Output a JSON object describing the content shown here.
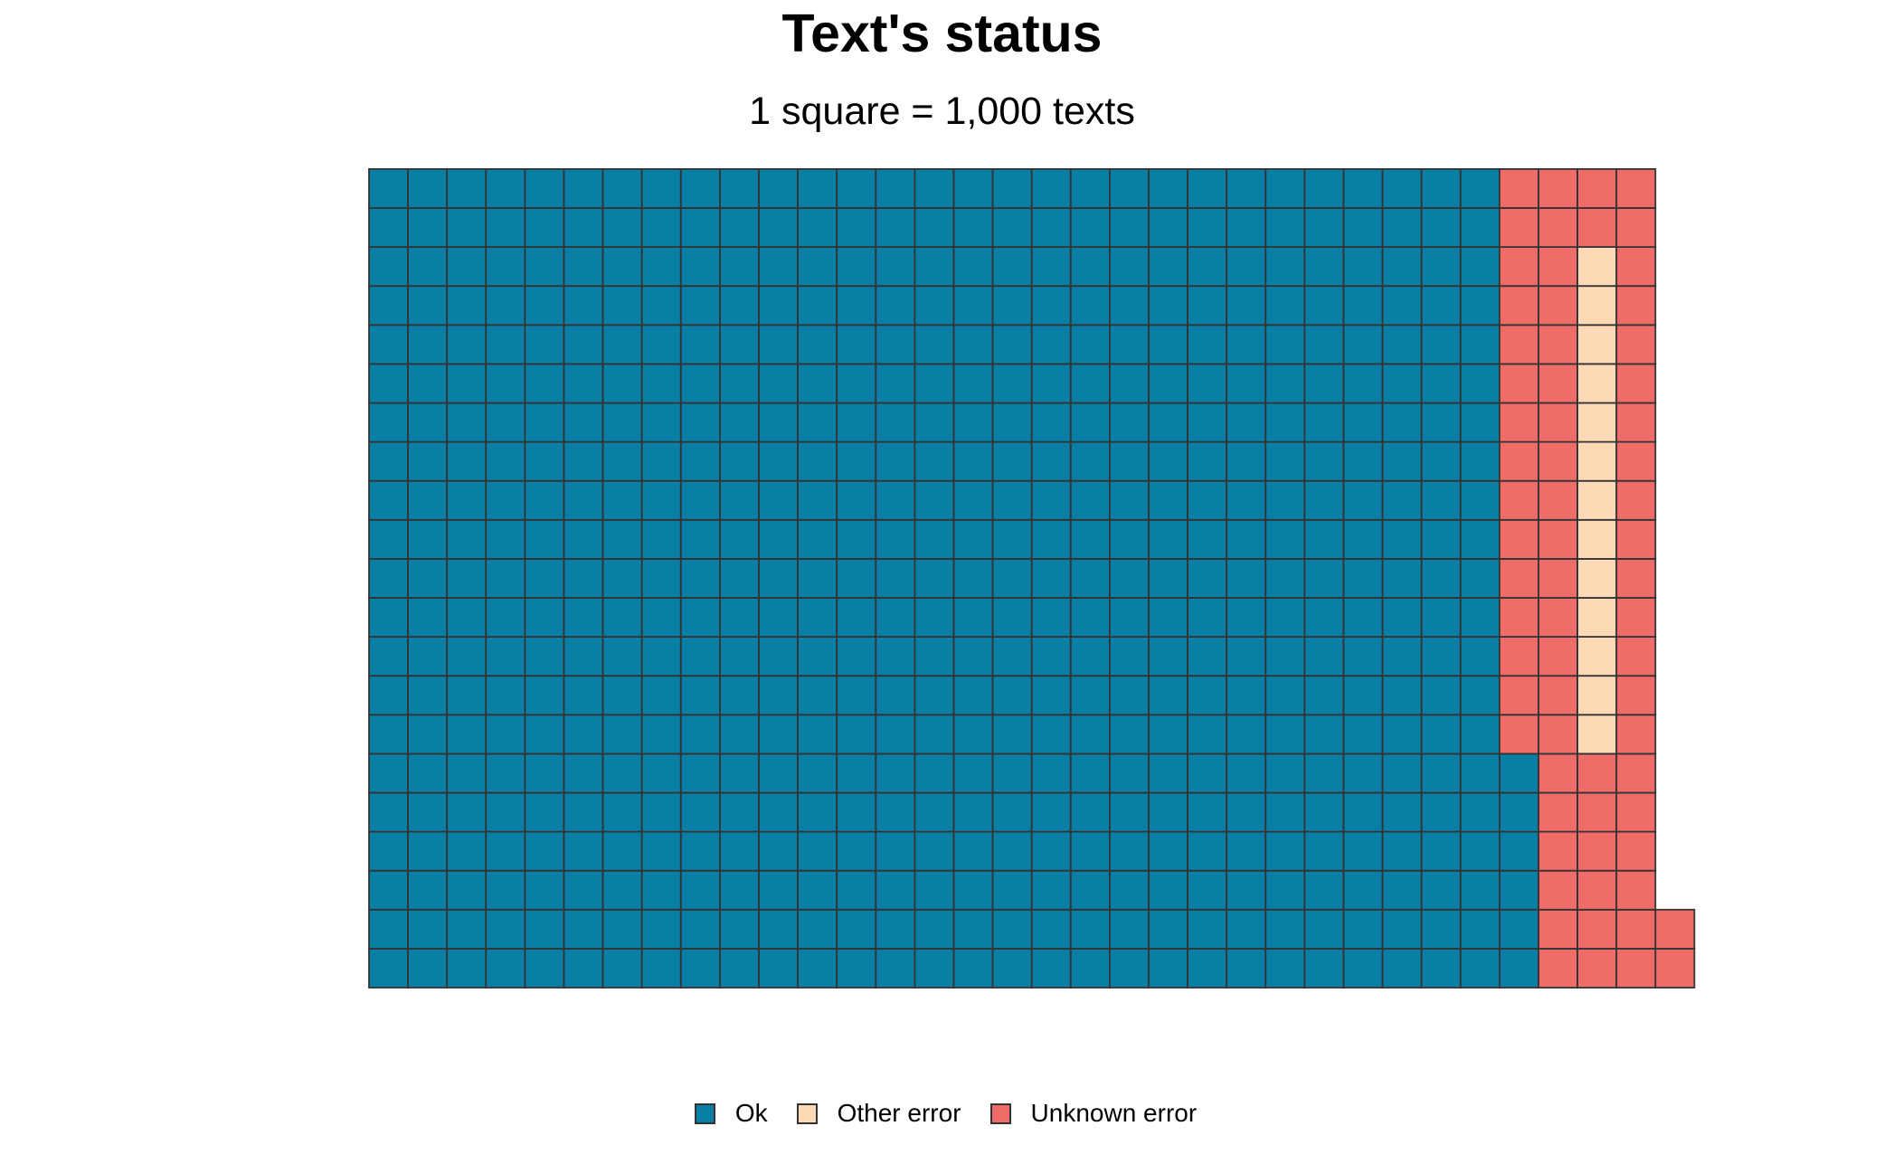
{
  "chart_data": {
    "type": "waffle",
    "title": "Text's status",
    "subtitle": "1 square = 1,000 texts",
    "square_unit": 1000,
    "rows": 21,
    "columns": 31,
    "fill_order": "column-wise, bottom to top, left to right",
    "series": [
      {
        "name": "Ok",
        "squares": 615,
        "color": "#0A7FA6"
      },
      {
        "name": "Unknown error",
        "squares": 42,
        "color": "#F06C69"
      },
      {
        "name": "Other error",
        "squares": 13,
        "color": "#FDD9B5"
      },
      {
        "name": "Unknown error",
        "squares": 25,
        "color": "#F06C69"
      }
    ],
    "legend": {
      "placement": "bottom",
      "items": [
        {
          "label": "Ok",
          "color": "#0A7FA6"
        },
        {
          "label": "Other error",
          "color": "#FDD9B5"
        },
        {
          "label": "Unknown error",
          "color": "#F06C69"
        }
      ]
    },
    "border_color": "#333333"
  }
}
